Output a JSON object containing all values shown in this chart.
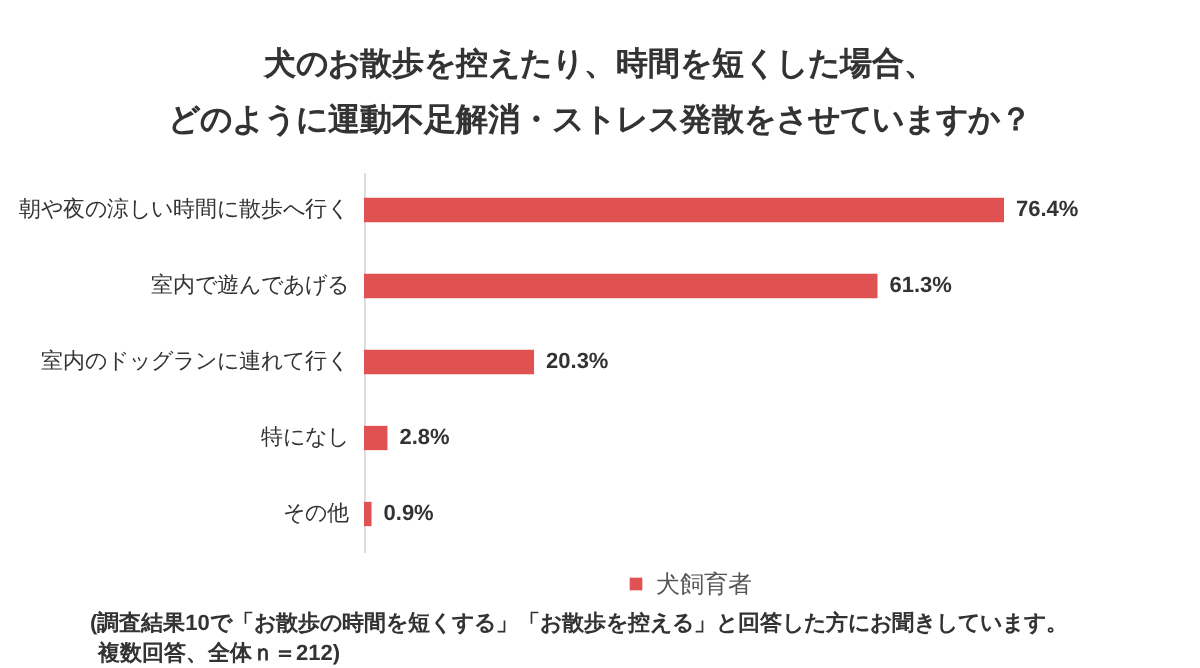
{
  "chart_data": {
    "type": "bar",
    "orientation": "horizontal",
    "title": "犬のお散歩を控えたり、時間を短くした場合、",
    "subtitle": "どのように運動不足解消・ストレス発散をさせていますか？",
    "categories": [
      "朝や夜の涼しい時間に散歩へ行く",
      "室内で遊んであげる",
      "室内のドッグランに連れて行く",
      "特になし",
      "その他"
    ],
    "series": [
      {
        "name": "犬飼育者",
        "color": "#e05252",
        "values": [
          76.4,
          61.3,
          20.3,
          2.8,
          0.9
        ],
        "value_labels": [
          "76.4%",
          "61.3%",
          "20.3%",
          "2.8%",
          "0.9%"
        ]
      }
    ],
    "legend": "bottom",
    "annotations": [
      "(調査結果10で「お散歩の時間を短くする」「お散歩を控える」と回答した方にお聞きしています。",
      "複数回答、全体ｎ＝212)"
    ]
  }
}
